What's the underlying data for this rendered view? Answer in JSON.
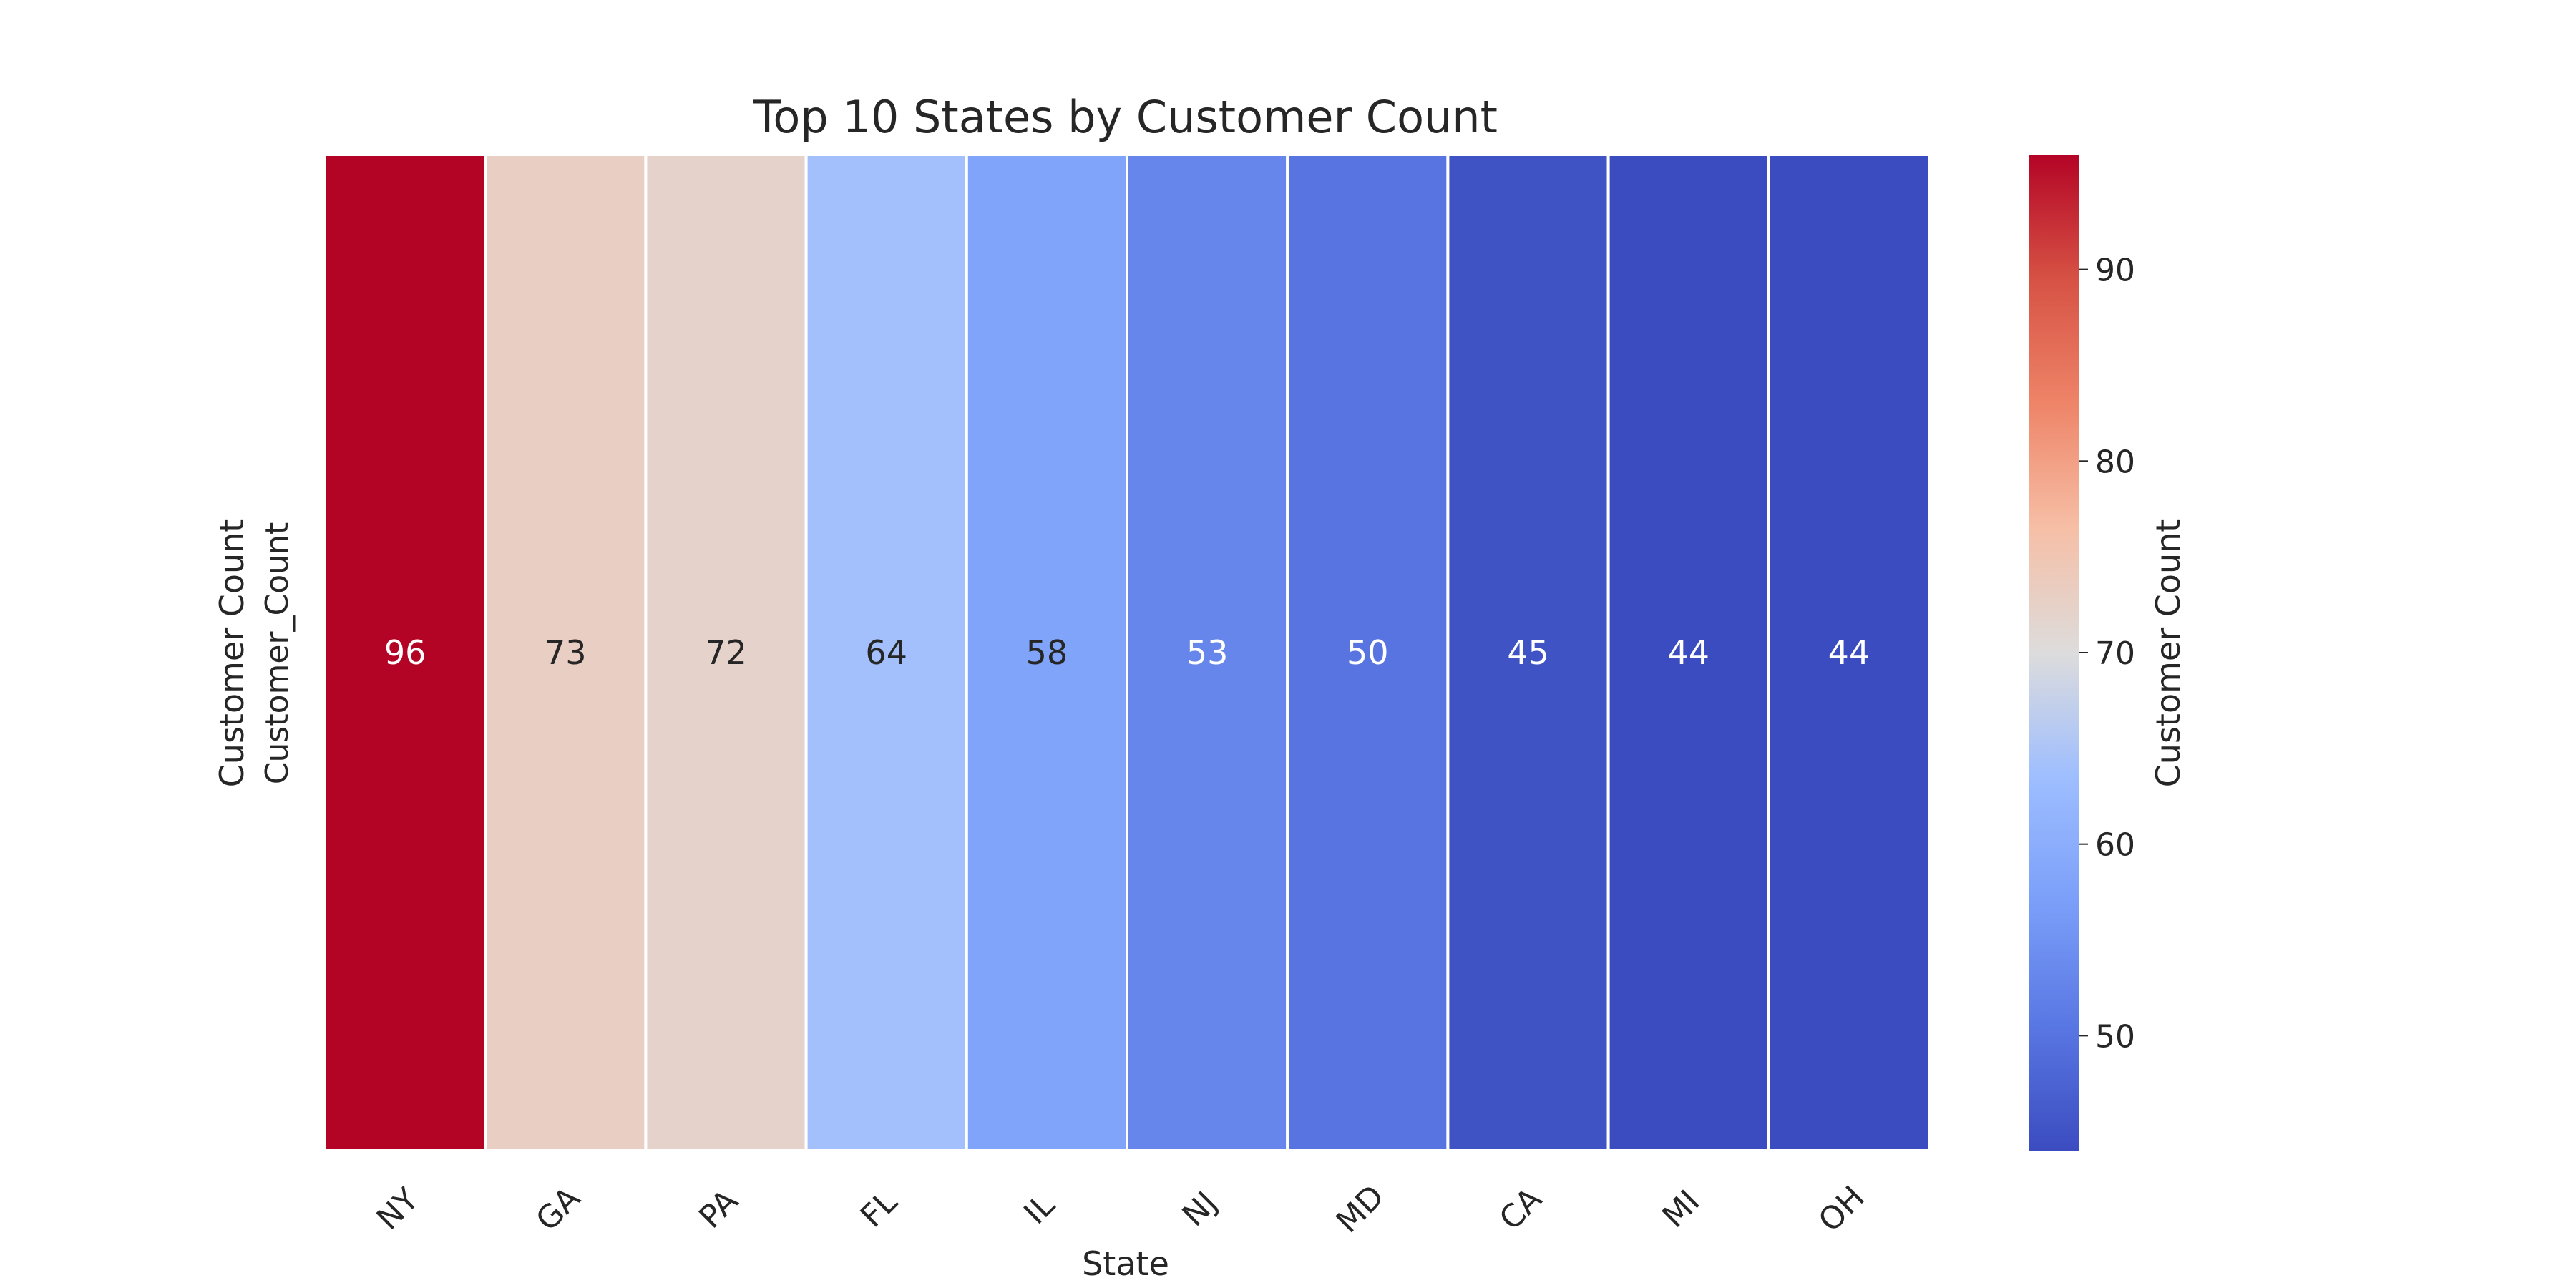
{
  "chart_data": {
    "type": "heatmap",
    "title": "Top 10 States by Customer Count",
    "xlabel": "State",
    "ylabel": "Customer Count",
    "row_labels": [
      "Customer_Count"
    ],
    "categories": [
      "NY",
      "GA",
      "PA",
      "FL",
      "IL",
      "NJ",
      "MD",
      "CA",
      "MI",
      "OH"
    ],
    "values": [
      96,
      73,
      72,
      64,
      58,
      53,
      50,
      45,
      44,
      44
    ],
    "colorbar": {
      "label": "Customer Count",
      "min": 44,
      "max": 96,
      "ticks": [
        50,
        60,
        70,
        80,
        90
      ]
    },
    "colormap": "coolwarm",
    "annotations": true,
    "legend": "colorbar right"
  }
}
